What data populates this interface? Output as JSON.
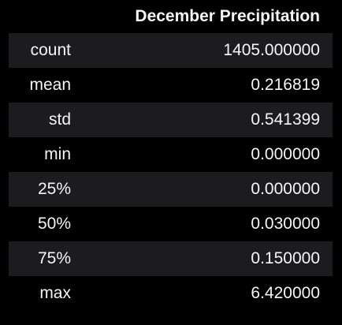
{
  "table": {
    "columns": [
      "",
      "December Precipitation"
    ],
    "rows": [
      {
        "label": "count",
        "value": "1405.000000"
      },
      {
        "label": "mean",
        "value": "0.216819"
      },
      {
        "label": "std",
        "value": "0.541399"
      },
      {
        "label": "min",
        "value": "0.000000"
      },
      {
        "label": "25%",
        "value": "0.000000"
      },
      {
        "label": "50%",
        "value": "0.030000"
      },
      {
        "label": "75%",
        "value": "0.150000"
      },
      {
        "label": "max",
        "value": "6.420000"
      }
    ]
  },
  "colors": {
    "background": "#000000",
    "row_stripe": "#1c1c1e",
    "text": "#f5f5f5"
  }
}
